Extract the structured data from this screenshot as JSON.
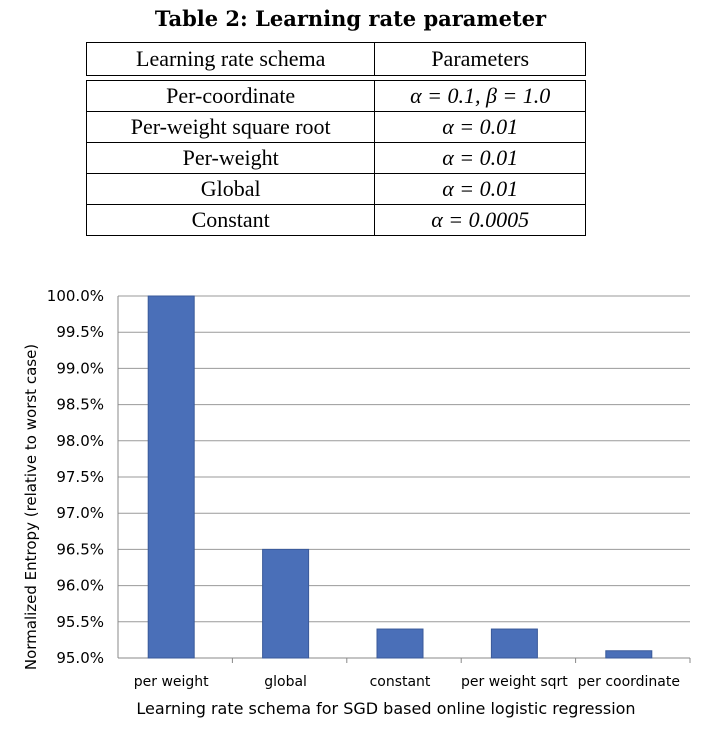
{
  "table": {
    "caption": "Table 2: Learning rate parameter",
    "headers": [
      "Learning rate schema",
      "Parameters"
    ],
    "rows": [
      {
        "schema": "Per-coordinate",
        "params": "α = 0.1, β = 1.0"
      },
      {
        "schema": "Per-weight square root",
        "params": "α = 0.01"
      },
      {
        "schema": "Per-weight",
        "params": "α = 0.01"
      },
      {
        "schema": "Global",
        "params": "α = 0.01"
      },
      {
        "schema": "Constant",
        "params": "α = 0.0005"
      }
    ]
  },
  "chart_data": {
    "type": "bar",
    "categories": [
      "per weight",
      "global",
      "constant",
      "per weight sqrt",
      "per coordinate"
    ],
    "values": [
      100.0,
      96.5,
      95.4,
      95.4,
      95.1
    ],
    "xlabel": "Learning rate schema for SGD based online logistic regression",
    "ylabel": "Normalized Entropy (relative to worst case)",
    "ylim": [
      95.0,
      100.0
    ],
    "yticks": [
      "95.0%",
      "95.5%",
      "96.0%",
      "96.5%",
      "97.0%",
      "97.5%",
      "98.0%",
      "98.5%",
      "99.0%",
      "99.5%",
      "100.0%"
    ],
    "grid": true,
    "bar_color": "#4a6fb8"
  }
}
